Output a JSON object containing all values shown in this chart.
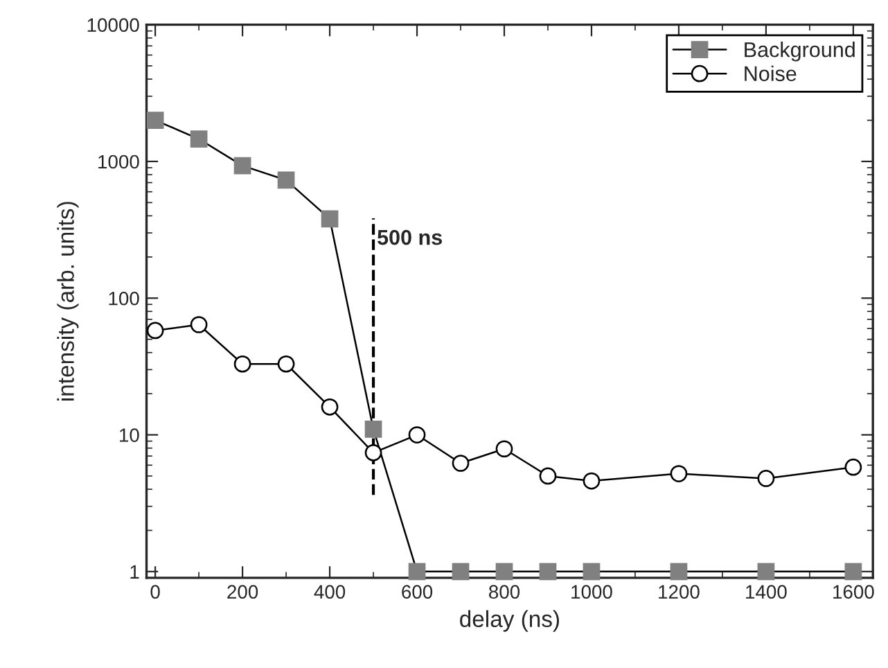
{
  "chart_data": {
    "type": "line",
    "xlabel": "delay (ns)",
    "ylabel": "intensity (arb. units)",
    "log": "y",
    "xlim": [
      -20,
      1645
    ],
    "ylim": [
      0.9,
      10000
    ],
    "xticks": [
      0,
      200,
      400,
      600,
      800,
      1000,
      1200,
      1400,
      1600
    ],
    "yticks": [
      1,
      10,
      100,
      1000,
      10000
    ],
    "grid": false,
    "legend": "top right",
    "series": [
      {
        "name": "Background",
        "color": "#808080",
        "marker": "square",
        "x": [
          0,
          100,
          200,
          300,
          400,
          500,
          600,
          700,
          800,
          900,
          1000,
          1200,
          1400,
          1600
        ],
        "values": [
          2000,
          1460,
          930,
          730,
          380,
          11,
          1,
          1,
          1,
          1,
          1,
          1,
          1,
          1
        ]
      },
      {
        "name": "Noise",
        "color": "#ffffff",
        "marker": "circle",
        "x": [
          0,
          100,
          200,
          300,
          400,
          500,
          600,
          700,
          800,
          900,
          1000,
          1200,
          1400,
          1600
        ],
        "values": [
          58,
          64,
          33,
          33,
          16,
          7.4,
          10,
          6.2,
          7.9,
          5.0,
          4.6,
          5.2,
          4.8,
          5.8
        ]
      }
    ],
    "ref_lines": [
      {
        "axis": "x",
        "value": 500,
        "label": "500 ns",
        "line_style": "dashed"
      }
    ]
  }
}
